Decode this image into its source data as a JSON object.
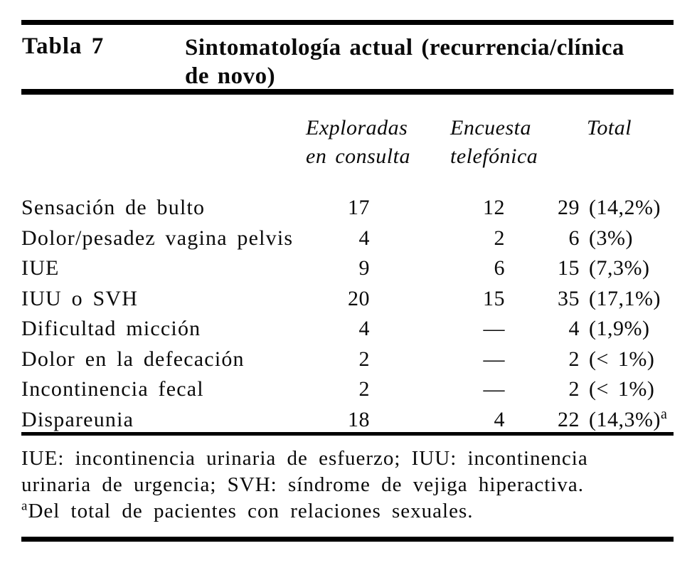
{
  "table": {
    "label": "Tabla 7",
    "title_lines": [
      "Sintomatología actual (recurrencia/clínica",
      "de novo)"
    ],
    "columns": {
      "explored": [
        "Exploradas",
        "en consulta"
      ],
      "survey": [
        "Encuesta",
        "telefónica"
      ],
      "total": "Total"
    },
    "rows": [
      {
        "symptom": "Sensación de bulto",
        "explored": "17",
        "survey": "12",
        "total_n": "29",
        "total_pct": "(14,2%)",
        "total_sup": ""
      },
      {
        "symptom": "Dolor/pesadez vagina pelvis",
        "explored": "4",
        "survey": "2",
        "total_n": "6",
        "total_pct": "(3%)",
        "total_sup": ""
      },
      {
        "symptom": "IUE",
        "explored": "9",
        "survey": "6",
        "total_n": "15",
        "total_pct": "(7,3%)",
        "total_sup": ""
      },
      {
        "symptom": "IUU o SVH",
        "explored": "20",
        "survey": "15",
        "total_n": "35",
        "total_pct": "(17,1%)",
        "total_sup": ""
      },
      {
        "symptom": "Dificultad micción",
        "explored": "4",
        "survey": "—",
        "total_n": "4",
        "total_pct": "(1,9%)",
        "total_sup": ""
      },
      {
        "symptom": "Dolor en la defecación",
        "explored": "2",
        "survey": "—",
        "total_n": "2",
        "total_pct": "(< 1%)",
        "total_sup": ""
      },
      {
        "symptom": "Incontinencia fecal",
        "explored": "2",
        "survey": "—",
        "total_n": "2",
        "total_pct": "(< 1%)",
        "total_sup": ""
      },
      {
        "symptom": "Dispareunia",
        "explored": "18",
        "survey": "4",
        "total_n": "22",
        "total_pct": "(14,3%)",
        "total_sup": "a"
      }
    ],
    "footnotes": {
      "abbrev_lines": [
        "IUE: incontinencia urinaria de esfuerzo; IUU: incontinencia",
        "urinaria de urgencia; SVH: síndrome de vejiga hiperactiva."
      ],
      "note_sup": "a",
      "note_text": "Del total de pacientes con relaciones sexuales."
    }
  }
}
